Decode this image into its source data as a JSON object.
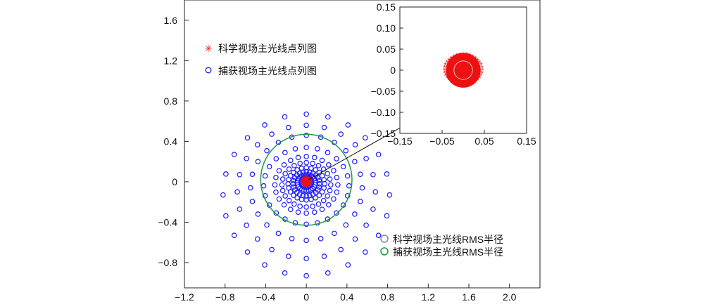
{
  "chart_data": [
    {
      "type": "scatter",
      "title": "",
      "xlabel": "",
      "ylabel": "",
      "xlim": [
        -1.2,
        2.3
      ],
      "ylim": [
        -1.05,
        1.8
      ],
      "xticks": [
        -1.2,
        -0.8,
        -0.4,
        0,
        0.4,
        0.8,
        1.2,
        1.6,
        2.0
      ],
      "xtick_labels": [
        "−1.2",
        "−0.8",
        "−0.4",
        "0",
        "0.4",
        "0.8",
        "1.2",
        "1.6",
        "2.0"
      ],
      "yticks": [
        -0.8,
        -0.4,
        0,
        0.4,
        0.8,
        1.2,
        1.6
      ],
      "ytick_labels": [
        "−0.8",
        "−0.4",
        "0",
        "0.4",
        "0.8",
        "1.2",
        "1.6"
      ],
      "grid": false,
      "legend_position": "top-left",
      "legend_entries": [
        {
          "label": "科学视场主光线点列图",
          "marker": "asterisk",
          "color": "#ee1111"
        },
        {
          "label": "捕获视场主光线点列图",
          "marker": "circle",
          "color": "#1a1aff"
        }
      ],
      "legend2_position": "bottom-right",
      "legend2_entries": [
        {
          "label": "科学视场主光线RMS半径",
          "marker": "circle",
          "color": "#8a8aa6"
        },
        {
          "label": "捕获视场主光线RMS半径",
          "marker": "circle",
          "color": "#1e9a46"
        }
      ],
      "series": [
        {
          "name": "捕获视场主光线点列图",
          "marker": "circle",
          "color": "#1a1aff",
          "pattern": "polar-grid",
          "rings_rx": [
            0.05,
            0.09,
            0.13,
            0.18,
            0.24,
            0.31,
            0.42,
            0.55,
            0.68,
            0.82
          ],
          "rings_ry": [
            0.05,
            0.08,
            0.12,
            0.16,
            0.22,
            0.28,
            0.38,
            0.52,
            0.66,
            0.8
          ],
          "ring_y_offset": [
            0,
            -0.01,
            -0.02,
            -0.02,
            -0.03,
            -0.03,
            -0.04,
            -0.06,
            -0.1,
            -0.13
          ],
          "points_per_ring": 24
        },
        {
          "name": "科学视场主光线点列图",
          "marker": "asterisk",
          "color": "#ee1111",
          "pattern": "filled-disk",
          "center": [
            0,
            0
          ],
          "radius": 0.05
        }
      ],
      "circles": [
        {
          "name": "捕获视场主光线RMS半径",
          "center": [
            0,
            0.02
          ],
          "radius": 0.45,
          "color": "#1e9a46"
        }
      ],
      "annotation_arrow": {
        "from": [
          0.02,
          0.02
        ],
        "to": [
          1.18,
          0.68
        ]
      }
    },
    {
      "type": "scatter",
      "title": "",
      "xlabel": "",
      "ylabel": "",
      "inset": true,
      "xlim": [
        -0.15,
        0.15
      ],
      "ylim": [
        -0.15,
        0.15
      ],
      "xticks": [
        -0.15,
        -0.05,
        0.05,
        0.15
      ],
      "xtick_labels": [
        "−0.15",
        "−0.05",
        "0.05",
        "0.15"
      ],
      "yticks": [
        0.15,
        0.1,
        0.05,
        0,
        -0.05,
        -0.1,
        -0.15
      ],
      "ytick_labels": [
        "0.15",
        "0.10",
        "0.05",
        "0",
        "−0.05",
        "−0.10",
        "−0.15"
      ],
      "grid": false,
      "series": [
        {
          "name": "科学视场主光线点列图",
          "marker": "asterisk",
          "color": "#ee1111",
          "pattern": "filled-disk",
          "center": [
            0,
            0
          ],
          "radius": 0.045,
          "rim_points": 36
        }
      ],
      "circles": [
        {
          "name": "科学视场主光线RMS半径",
          "center": [
            0,
            0
          ],
          "radius": 0.022,
          "color": "#c8c8dc"
        }
      ]
    }
  ]
}
